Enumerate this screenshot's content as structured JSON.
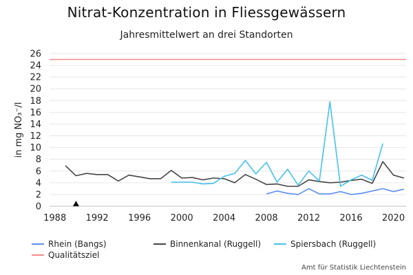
{
  "chart_data": {
    "type": "line",
    "title": "Nitrat-Konzentration in Fliessgewässern",
    "subtitle": "Jahresmittelwert an drei Standorten",
    "ylabel": "in mg NO₃⁻/l",
    "xlabel": "",
    "xlim": [
      1987.5,
      2021.2
    ],
    "ylim": [
      0,
      26
    ],
    "x_ticks": [
      1988,
      1992,
      1996,
      2000,
      2004,
      2008,
      2012,
      2016,
      2020
    ],
    "y_ticks": [
      0,
      2,
      4,
      6,
      8,
      10,
      12,
      14,
      16,
      18,
      20,
      22,
      24,
      26
    ],
    "grid": "horizontal",
    "legend_position": "bottom",
    "series": [
      {
        "name": "Rhein (Bangs)",
        "color": "#5b8ff0",
        "x": [
          2008,
          2009,
          2010,
          2011,
          2012,
          2013,
          2014,
          2015,
          2016,
          2017,
          2018,
          2019,
          2020,
          2021
        ],
        "y": [
          2.1,
          2.6,
          2.2,
          2.0,
          3.0,
          2.1,
          2.1,
          2.5,
          2.0,
          2.2,
          2.6,
          3.0,
          2.5,
          2.9
        ]
      },
      {
        "name": "Binnenkanal (Ruggell)",
        "color": "#444444",
        "x": [
          1989,
          1990,
          1991,
          1992,
          1993,
          1994,
          1995,
          1996,
          1997,
          1998,
          1999,
          2000,
          2001,
          2002,
          2003,
          2004,
          2005,
          2006,
          2007,
          2008,
          2009,
          2010,
          2011,
          2012,
          2013,
          2014,
          2015,
          2016,
          2017,
          2018,
          2019,
          2020,
          2021
        ],
        "y": [
          6.9,
          5.2,
          5.6,
          5.4,
          5.4,
          4.3,
          5.3,
          5.0,
          4.7,
          4.7,
          6.1,
          4.8,
          4.9,
          4.5,
          4.8,
          4.7,
          4.0,
          5.4,
          4.6,
          3.7,
          3.8,
          3.4,
          3.4,
          4.5,
          4.2,
          4.0,
          4.1,
          4.4,
          4.6,
          3.9,
          7.6,
          5.3,
          4.8
        ]
      },
      {
        "name": "Spiersbach (Ruggell)",
        "color": "#45c0ee",
        "x": [
          1999,
          2000,
          2001,
          2002,
          2003,
          2004,
          2005,
          2006,
          2007,
          2008,
          2009,
          2010,
          2011,
          2012,
          2013,
          2014,
          2015,
          2016,
          2017,
          2018,
          2019
        ],
        "y": [
          4.1,
          4.1,
          4.1,
          3.8,
          3.9,
          5.1,
          5.6,
          7.8,
          5.5,
          7.5,
          4.1,
          6.3,
          3.6,
          6.0,
          4.3,
          17.8,
          3.4,
          4.5,
          5.3,
          4.4,
          10.7
        ]
      },
      {
        "name": "Qualitätsziel",
        "color": "#f08a8a",
        "x": [
          1987.5,
          2021.2
        ],
        "y": [
          25,
          25
        ]
      }
    ],
    "annotations": [
      {
        "type": "marker",
        "symbol": "triangle",
        "x": 1990,
        "y": 0
      }
    ]
  },
  "footer": {
    "source": "Amt für Statistik Liechtenstein"
  }
}
